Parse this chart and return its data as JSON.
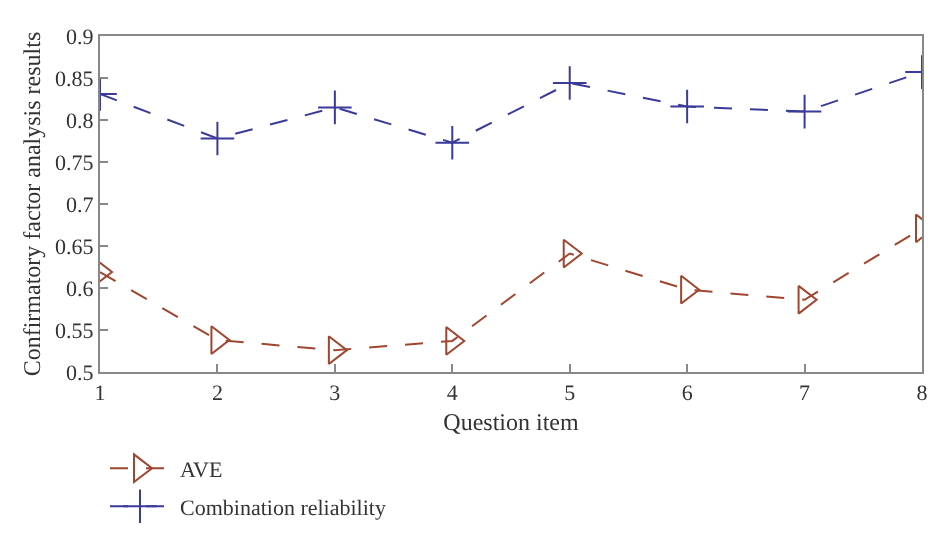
{
  "chart_data": {
    "type": "line",
    "xlabel": "Question item",
    "ylabel": "Confirmatory factor analysis results",
    "x": [
      1,
      2,
      3,
      4,
      5,
      6,
      7,
      8
    ],
    "series": [
      {
        "name": "AVE",
        "color": "#a0452e",
        "marker": "triangle",
        "values": [
          0.619,
          0.538,
          0.526,
          0.537,
          0.641,
          0.598,
          0.586,
          0.671
        ]
      },
      {
        "name": "Combination reliability",
        "color": "#3a3a9a",
        "marker": "cross",
        "values": [
          0.831,
          0.778,
          0.815,
          0.773,
          0.844,
          0.816,
          0.81,
          0.857
        ]
      }
    ],
    "xlim": [
      1,
      8
    ],
    "xticks": [
      1,
      2,
      3,
      4,
      5,
      6,
      7,
      8
    ],
    "ylim": [
      0.5,
      0.9
    ],
    "yticks": [
      0.5,
      0.55,
      0.6,
      0.65,
      0.7,
      0.75,
      0.8,
      0.85,
      0.9
    ],
    "line_style": "dashed",
    "legend": "bottom left"
  }
}
